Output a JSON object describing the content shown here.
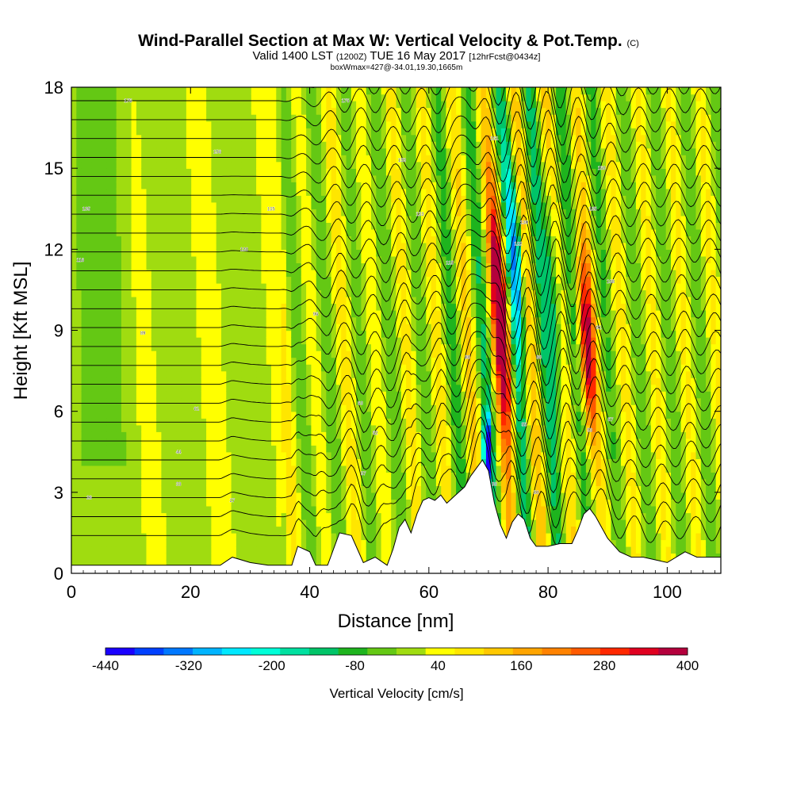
{
  "chart_data": {
    "type": "heatmap",
    "title": "Wind-Parallel Section at Max W: Vertical Velocity & Pot.Temp.",
    "copyright": "(C)",
    "subtitle_valid": "Valid 1400 LST",
    "subtitle_utc": "(1200Z)",
    "subtitle_date": "TUE 16 May 2017",
    "subtitle_forecast": "[12hrFcst@0434z]",
    "subtitle_box": "boxWmax=427@-34.01,19.30,1665m",
    "xlabel": "Distance [nm]",
    "ylabel": "Height [Kft MSL]",
    "xlim": [
      0,
      109
    ],
    "ylim": [
      0,
      18
    ],
    "xticks": [
      0,
      20,
      40,
      60,
      80,
      100
    ],
    "yticks": [
      0,
      3,
      6,
      9,
      12,
      15,
      18
    ],
    "colorbar": {
      "label": "Vertical Velocity [cm/s]",
      "ticks": [
        "-440",
        "-320",
        "-200",
        "-80",
        "40",
        "160",
        "280",
        "400"
      ],
      "range": [
        -440,
        400
      ],
      "colors": [
        "#1a00ff",
        "#0040ff",
        "#0078ff",
        "#00b4ff",
        "#00e8ff",
        "#00ffd8",
        "#00e0a0",
        "#00c468",
        "#1eb41e",
        "#64c814",
        "#a0dc10",
        "#ffff00",
        "#ffe600",
        "#ffc800",
        "#ffa500",
        "#ff8200",
        "#ff5a00",
        "#ff2800",
        "#e00020",
        "#b4003c"
      ]
    },
    "terrain_kft": [
      [
        0,
        0.3
      ],
      [
        8,
        0.3
      ],
      [
        15,
        0.3
      ],
      [
        20,
        0.3
      ],
      [
        25,
        0.3
      ],
      [
        27,
        0.6
      ],
      [
        30,
        0.4
      ],
      [
        33,
        0.3
      ],
      [
        35,
        0.3
      ],
      [
        37,
        0.3
      ],
      [
        38,
        1.0
      ],
      [
        40,
        0.8
      ],
      [
        41,
        0.3
      ],
      [
        43,
        0.3
      ],
      [
        45,
        1.5
      ],
      [
        47,
        1.4
      ],
      [
        49,
        0.4
      ],
      [
        51,
        0.6
      ],
      [
        53,
        0.3
      ],
      [
        54,
        0.9
      ],
      [
        55,
        1.7
      ],
      [
        56,
        2.0
      ],
      [
        57,
        1.5
      ],
      [
        58,
        2.2
      ],
      [
        59,
        2.7
      ],
      [
        60,
        2.8
      ],
      [
        61,
        2.7
      ],
      [
        62,
        2.9
      ],
      [
        63,
        2.6
      ],
      [
        64,
        2.8
      ],
      [
        65,
        3.0
      ],
      [
        66,
        3.2
      ],
      [
        67,
        3.6
      ],
      [
        68,
        3.9
      ],
      [
        69,
        4.2
      ],
      [
        70,
        3.8
      ],
      [
        71,
        2.6
      ],
      [
        72,
        1.8
      ],
      [
        73,
        1.3
      ],
      [
        74,
        1.9
      ],
      [
        75,
        2.2
      ],
      [
        76,
        2.0
      ],
      [
        77,
        1.3
      ],
      [
        78,
        1.0
      ],
      [
        80,
        1.0
      ],
      [
        82,
        1.1
      ],
      [
        84,
        1.1
      ],
      [
        85,
        1.6
      ],
      [
        86,
        2.2
      ],
      [
        87,
        2.4
      ],
      [
        88,
        2.1
      ],
      [
        89,
        1.7
      ],
      [
        90,
        1.3
      ],
      [
        92,
        0.8
      ],
      [
        94,
        0.6
      ],
      [
        96,
        0.6
      ],
      [
        100,
        0.4
      ],
      [
        103,
        0.8
      ],
      [
        105,
        0.6
      ],
      [
        109,
        0.6
      ]
    ],
    "vertical_velocity_features": [
      {
        "x": 72.0,
        "y": 9.0,
        "value": 400,
        "note": "strongest updraft"
      },
      {
        "x": 74.5,
        "y": 11.5,
        "value": -260,
        "note": "strongest downdraft"
      },
      {
        "x": 70.0,
        "y": 4.5,
        "value": -440,
        "note": "low-level downdraft"
      },
      {
        "x": 86.5,
        "y": 8.5,
        "value": 330
      },
      {
        "x": 81.0,
        "y": 10.0,
        "value": -180
      }
    ],
    "isentrope_labels": [
      {
        "x": 3,
        "y": 2.8,
        "text": "28"
      },
      {
        "x": 18,
        "y": 3.3,
        "text": "33"
      },
      {
        "x": 18,
        "y": 4.5,
        "text": "44"
      },
      {
        "x": 21,
        "y": 6.1,
        "text": "61"
      },
      {
        "x": 12,
        "y": 8.9,
        "text": "89"
      },
      {
        "x": 1.5,
        "y": 11.6,
        "text": "116"
      },
      {
        "x": 2.5,
        "y": 13.5,
        "text": "135"
      },
      {
        "x": 9.5,
        "y": 17.5,
        "text": "175"
      },
      {
        "x": 24.5,
        "y": 15.6,
        "text": "156"
      },
      {
        "x": 29,
        "y": 12.0,
        "text": "120"
      },
      {
        "x": 33.5,
        "y": 13.5,
        "text": "135"
      },
      {
        "x": 41,
        "y": 9.6,
        "text": "96"
      },
      {
        "x": 46,
        "y": 17.5,
        "text": "175"
      },
      {
        "x": 55.5,
        "y": 15.3,
        "text": "153"
      },
      {
        "x": 58.5,
        "y": 13.3,
        "text": "133"
      },
      {
        "x": 63.5,
        "y": 11.5,
        "text": "115"
      },
      {
        "x": 48.5,
        "y": 6.3,
        "text": "63"
      },
      {
        "x": 51,
        "y": 5.2,
        "text": "52"
      },
      {
        "x": 49,
        "y": 3.7,
        "text": "37"
      },
      {
        "x": 27,
        "y": 2.7,
        "text": "27"
      },
      {
        "x": 66.5,
        "y": 8.0,
        "text": "80"
      },
      {
        "x": 71,
        "y": 16.1,
        "text": "161"
      },
      {
        "x": 76,
        "y": 13.0,
        "text": "130"
      },
      {
        "x": 75,
        "y": 12.2,
        "text": "122"
      },
      {
        "x": 78.5,
        "y": 8.0,
        "text": "80"
      },
      {
        "x": 76,
        "y": 5.5,
        "text": "55"
      },
      {
        "x": 78,
        "y": 3.0,
        "text": "30"
      },
      {
        "x": 71,
        "y": 3.3,
        "text": "33"
      },
      {
        "x": 87,
        "y": 5.3,
        "text": "53"
      },
      {
        "x": 90.5,
        "y": 5.7,
        "text": "57"
      },
      {
        "x": 88.5,
        "y": 9.1,
        "text": "91"
      },
      {
        "x": 90.5,
        "y": 10.8,
        "text": "108"
      },
      {
        "x": 87.5,
        "y": 13.5,
        "text": "135"
      },
      {
        "x": 89,
        "y": 15.0,
        "text": "150"
      }
    ]
  }
}
